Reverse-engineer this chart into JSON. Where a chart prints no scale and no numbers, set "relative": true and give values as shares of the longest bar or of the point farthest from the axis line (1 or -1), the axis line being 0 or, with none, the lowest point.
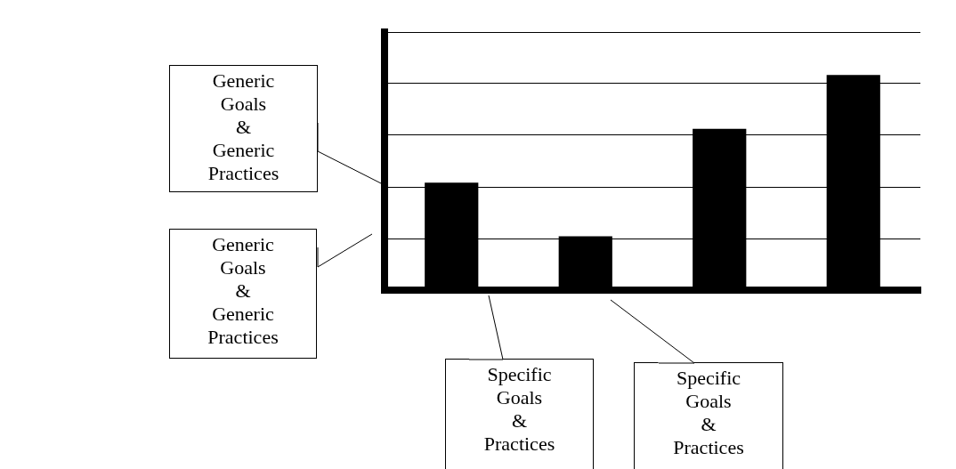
{
  "chart_data": {
    "type": "bar",
    "relative": true,
    "categories": [
      null,
      null,
      null,
      null
    ],
    "values": [
      0.5,
      0.25,
      0.75,
      1
    ],
    "color": "#000000",
    "grid": "y",
    "tick_labels": false,
    "annotations": [
      "Generic Goals & Generic Practices",
      "Generic Goals & Generic Practices",
      "Specific Goals & Practices",
      "Specific Goals & Practices"
    ]
  }
}
